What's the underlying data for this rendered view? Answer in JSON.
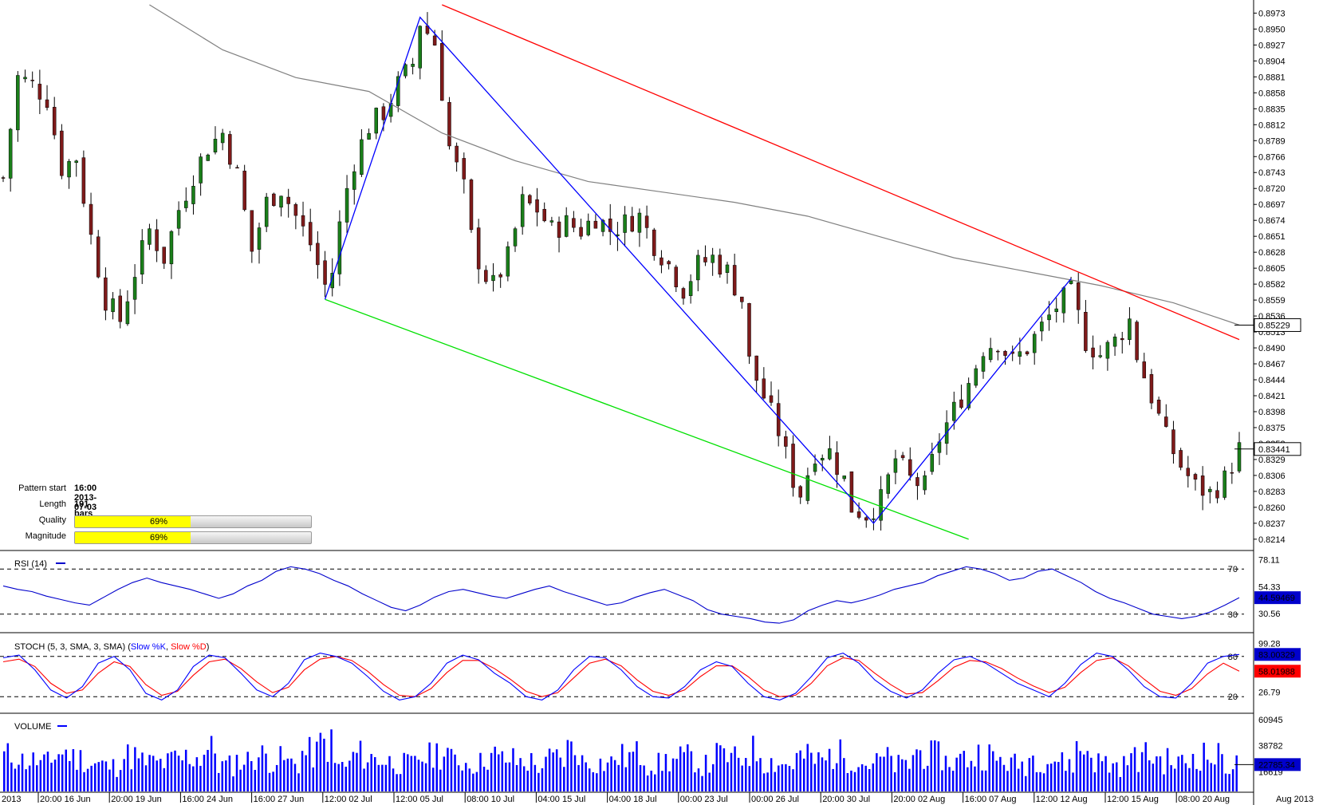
{
  "colors": {
    "bull": "#1a7f1a",
    "bear": "#7f1a1a",
    "ma": "#808080",
    "resistance": "#ff0000",
    "support": "#00e000",
    "zigzag": "#0000ff",
    "rsi": "#0000cc",
    "stoch_k": "#0000ff",
    "stoch_d": "#ff0000",
    "volume": "#0000ff",
    "tag_blue": "#0000cc",
    "tag_red": "#ff0000",
    "tag_gray": "#333333"
  },
  "info_panel": {
    "pattern_start_label": "Pattern start",
    "pattern_start_value": "16:00 2013-07-03",
    "length_label": "Length",
    "length_value": "191 bars",
    "quality_label": "Quality",
    "quality_value": 0.69,
    "quality_text": "69%",
    "magnitude_label": "Magnitude",
    "magnitude_value": 0.69,
    "magnitude_text": "69%"
  },
  "chart_data": [
    {
      "type": "candlestick",
      "title": "",
      "ylim": [
        0.82,
        0.8985
      ],
      "y_ticks": [
        "0.8973",
        "0.8950",
        "0.8927",
        "0.8904",
        "0.8881",
        "0.8858",
        "0.8835",
        "0.8812",
        "0.8789",
        "0.8766",
        "0.8743",
        "0.8720",
        "0.8697",
        "0.8674",
        "0.8651",
        "0.8628",
        "0.8605",
        "0.8582",
        "0.8559",
        "0.8536",
        "0.8513",
        "0.8490",
        "0.8467",
        "0.8444",
        "0.8421",
        "0.8398",
        "0.8375",
        "0.8352",
        "0.8329",
        "0.8306",
        "0.8283",
        "0.8260",
        "0.8237",
        "0.8214"
      ],
      "x_labels": [
        "2013",
        "20:00 16 Jun",
        "20:00 19 Jun",
        "16:00 24 Jun",
        "16:00 27 Jun",
        "12:00 02 Jul",
        "12:00 05 Jul",
        "08:00 10 Jul",
        "04:00 15 Jul",
        "04:00 18 Jul",
        "00:00 23 Jul",
        "00:00 26 Jul",
        "20:00 30 Jul",
        "20:00 02 Aug",
        "16:00 07 Aug",
        "12:00 12 Aug",
        "12:00 15 Aug",
        "08:00 20 Aug"
      ],
      "x_axis_end_label": "Aug 2013",
      "bars": 176,
      "close_path": [
        [
          0,
          0.8735
        ],
        [
          4,
          0.888
        ],
        [
          8,
          0.887
        ],
        [
          12,
          0.885
        ],
        [
          16,
          0.875
        ],
        [
          20,
          0.8765
        ],
        [
          24,
          0.865
        ],
        [
          28,
          0.856
        ],
        [
          32,
          0.853
        ],
        [
          36,
          0.86
        ],
        [
          40,
          0.866
        ],
        [
          44,
          0.862
        ],
        [
          48,
          0.869
        ],
        [
          52,
          0.874
        ],
        [
          56,
          0.878
        ],
        [
          60,
          0.88
        ],
        [
          64,
          0.874
        ],
        [
          68,
          0.863
        ],
        [
          72,
          0.87
        ],
        [
          76,
          0.872
        ],
        [
          80,
          0.868
        ],
        [
          84,
          0.864
        ],
        [
          88,
          0.858
        ],
        [
          90,
          0.86
        ],
        [
          93,
          0.87
        ],
        [
          96,
          0.876
        ],
        [
          100,
          0.881
        ],
        [
          104,
          0.883
        ],
        [
          108,
          0.887
        ],
        [
          112,
          0.89
        ],
        [
          114,
          0.896
        ],
        [
          118,
          0.893
        ],
        [
          120,
          0.886
        ],
        [
          122,
          0.878
        ],
        [
          126,
          0.872
        ],
        [
          128,
          0.865
        ],
        [
          131,
          0.86
        ],
        [
          134,
          0.858
        ],
        [
          138,
          0.862
        ],
        [
          142,
          0.87
        ],
        [
          146,
          0.869
        ],
        [
          150,
          0.866
        ],
        [
          154,
          0.867
        ],
        [
          158,
          0.866
        ],
        [
          162,
          0.868
        ],
        [
          166,
          0.866
        ],
        [
          170,
          0.867
        ],
        [
          174,
          0.868
        ],
        [
          178,
          0.864
        ],
        [
          182,
          0.861
        ],
        [
          186,
          0.8575
        ],
        [
          190,
          0.861
        ],
        [
          194,
          0.862
        ],
        [
          198,
          0.86
        ],
        [
          202,
          0.856
        ],
        [
          204,
          0.847
        ],
        [
          208,
          0.842
        ],
        [
          212,
          0.837
        ],
        [
          216,
          0.83
        ],
        [
          218,
          0.828
        ],
        [
          222,
          0.834
        ],
        [
          226,
          0.834
        ],
        [
          230,
          0.83
        ],
        [
          232,
          0.826
        ],
        [
          236,
          0.825
        ],
        [
          240,
          0.827
        ],
        [
          244,
          0.833
        ],
        [
          248,
          0.83
        ],
        [
          252,
          0.829
        ],
        [
          256,
          0.836
        ],
        [
          260,
          0.84
        ],
        [
          264,
          0.844
        ],
        [
          268,
          0.849
        ],
        [
          272,
          0.85
        ],
        [
          276,
          0.847
        ],
        [
          280,
          0.849
        ],
        [
          284,
          0.852
        ],
        [
          288,
          0.855
        ],
        [
          292,
          0.857
        ],
        [
          296,
          0.85
        ],
        [
          300,
          0.848
        ],
        [
          304,
          0.85
        ],
        [
          308,
          0.853
        ],
        [
          310,
          0.848
        ],
        [
          314,
          0.842
        ],
        [
          318,
          0.836
        ],
        [
          322,
          0.832
        ],
        [
          326,
          0.829
        ],
        [
          330,
          0.828
        ],
        [
          334,
          0.83
        ],
        [
          338,
          0.8344
        ]
      ],
      "moving_average_path": [
        [
          40,
          0.8985
        ],
        [
          60,
          0.892
        ],
        [
          80,
          0.888
        ],
        [
          100,
          0.886
        ],
        [
          120,
          0.88
        ],
        [
          140,
          0.876
        ],
        [
          160,
          0.873
        ],
        [
          180,
          0.8715
        ],
        [
          200,
          0.87
        ],
        [
          220,
          0.868
        ],
        [
          240,
          0.865
        ],
        [
          260,
          0.862
        ],
        [
          280,
          0.86
        ],
        [
          300,
          0.858
        ],
        [
          320,
          0.8555
        ],
        [
          338,
          0.8523
        ]
      ],
      "trend_lines": {
        "resistance": [
          [
            120,
            0.8985
          ],
          [
            338,
            0.8502
          ]
        ],
        "support": [
          [
            88,
            0.856
          ],
          [
            264,
            0.8214
          ]
        ],
        "zigzag": [
          [
            88,
            0.856
          ],
          [
            114,
            0.8967
          ],
          [
            238,
            0.8237
          ],
          [
            292,
            0.859
          ]
        ]
      },
      "price_tags": [
        {
          "value": 0.85229,
          "text": "0.85229",
          "style": "gray"
        },
        {
          "value": 0.83441,
          "text": "0.83441",
          "style": "gray"
        }
      ]
    },
    {
      "type": "line",
      "title": "RSI (14)",
      "ylim": [
        15,
        85
      ],
      "y_ticks": [
        "78.11",
        "54.33",
        "30.56"
      ],
      "levels": [
        70,
        30
      ],
      "level_labels": [
        "70",
        "30"
      ],
      "series": [
        {
          "name": "RSI (14)",
          "values": [
            55,
            52,
            50,
            46,
            43,
            40,
            38,
            45,
            52,
            58,
            62,
            58,
            55,
            52,
            48,
            44,
            48,
            55,
            60,
            68,
            72,
            70,
            66,
            60,
            55,
            48,
            42,
            36,
            33,
            38,
            45,
            50,
            52,
            49,
            46,
            44,
            48,
            52,
            55,
            50,
            46,
            42,
            38,
            40,
            45,
            49,
            52,
            47,
            42,
            34,
            30,
            28,
            26,
            23,
            22,
            25,
            33,
            38,
            42,
            40,
            43,
            47,
            52,
            55,
            58,
            64,
            68,
            72,
            70,
            66,
            60,
            62,
            68,
            70,
            64,
            58,
            50,
            44,
            40,
            35,
            30,
            28,
            26,
            28,
            32,
            38,
            44.6
          ]
        }
      ],
      "current_value": {
        "text": "44.59469"
      }
    },
    {
      "type": "line",
      "title": "STOCH (5, 3, SMA, 3, SMA)",
      "legend": [
        "Slow %K",
        "Slow %D"
      ],
      "ylim": [
        0,
        100
      ],
      "y_ticks": [
        "99.28",
        "26.79"
      ],
      "levels": [
        80,
        20
      ],
      "level_labels": [
        "80",
        "20"
      ],
      "series": [
        {
          "name": "Slow %K",
          "values": [
            78,
            82,
            60,
            30,
            18,
            35,
            70,
            80,
            60,
            25,
            15,
            30,
            65,
            82,
            78,
            55,
            30,
            20,
            40,
            75,
            85,
            80,
            70,
            50,
            28,
            15,
            20,
            40,
            70,
            82,
            75,
            55,
            40,
            20,
            15,
            30,
            60,
            80,
            78,
            60,
            35,
            20,
            18,
            35,
            60,
            72,
            65,
            40,
            20,
            15,
            25,
            50,
            78,
            85,
            70,
            45,
            28,
            18,
            30,
            55,
            75,
            80,
            70,
            55,
            40,
            30,
            20,
            40,
            68,
            85,
            80,
            60,
            35,
            20,
            18,
            40,
            70,
            80,
            83
          ]
        },
        {
          "name": "Slow %D",
          "values": [
            72,
            76,
            65,
            40,
            25,
            30,
            55,
            72,
            65,
            38,
            22,
            28,
            52,
            72,
            76,
            62,
            42,
            26,
            34,
            60,
            76,
            80,
            74,
            58,
            38,
            22,
            20,
            32,
            56,
            74,
            74,
            62,
            46,
            28,
            20,
            26,
            48,
            70,
            76,
            66,
            45,
            28,
            22,
            30,
            50,
            66,
            66,
            50,
            30,
            20,
            22,
            40,
            66,
            78,
            74,
            55,
            38,
            24,
            26,
            44,
            64,
            74,
            72,
            62,
            48,
            36,
            26,
            34,
            56,
            74,
            78,
            66,
            46,
            28,
            22,
            32,
            54,
            70,
            58
          ]
        }
      ],
      "current_values": [
        {
          "text": "83.00329"
        },
        {
          "text": "58.01988"
        }
      ]
    },
    {
      "type": "bar",
      "title": "VOLUME",
      "ylim": [
        0,
        65000
      ],
      "y_ticks": [
        "60945",
        "38782",
        "16619"
      ],
      "values": [
        30000,
        26000,
        24000,
        33000,
        28000,
        23000,
        21000,
        30000,
        25000,
        24000,
        27000,
        29000,
        35000,
        22000,
        26000,
        30000,
        27000,
        24000,
        32000,
        40000,
        22000,
        31000,
        28000,
        25000,
        23000,
        29000,
        33000,
        26000,
        24000,
        30000,
        27000,
        25000,
        22000,
        28000,
        36000,
        25000,
        24000,
        29000,
        31000,
        23000,
        26000,
        28000,
        22000,
        30000,
        27000,
        34000,
        25000,
        23000,
        29000,
        26000,
        31000,
        28000,
        24000,
        27000,
        22000,
        33000,
        30000,
        25000,
        28000,
        32000,
        26000,
        23000,
        29000,
        27000,
        24000,
        35000,
        25000,
        22000,
        28000,
        30000,
        26000,
        24000,
        31000,
        29000,
        22785
      ],
      "current_value": {
        "text": "22785.34"
      }
    }
  ]
}
